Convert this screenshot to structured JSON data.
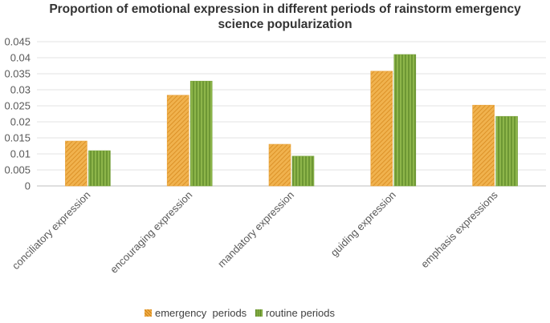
{
  "chart_data": {
    "type": "bar",
    "title_line1": "Proportion of emotional expression in different periods of rainstorm emergency",
    "title_line2": "science popularization",
    "categories": [
      "conciliatory expression",
      "encouraging expression",
      "mandatory expression",
      "guiding expression",
      "emphasis expressions"
    ],
    "series": [
      {
        "name": "emergency  periods",
        "values": [
          0.014,
          0.0283,
          0.013,
          0.0358,
          0.0252
        ],
        "color": "#E8A33C"
      },
      {
        "name": "routine periods",
        "values": [
          0.011,
          0.0327,
          0.0093,
          0.041,
          0.0217
        ],
        "color": "#7AA33C"
      }
    ],
    "yticks": [
      "0",
      "0.005",
      "0.01",
      "0.015",
      "0.02",
      "0.025",
      "0.03",
      "0.035",
      "0.04",
      "0.045"
    ],
    "ylim": [
      0,
      0.045
    ],
    "xlabel": "",
    "ylabel": "",
    "legend_position": "bottom"
  }
}
